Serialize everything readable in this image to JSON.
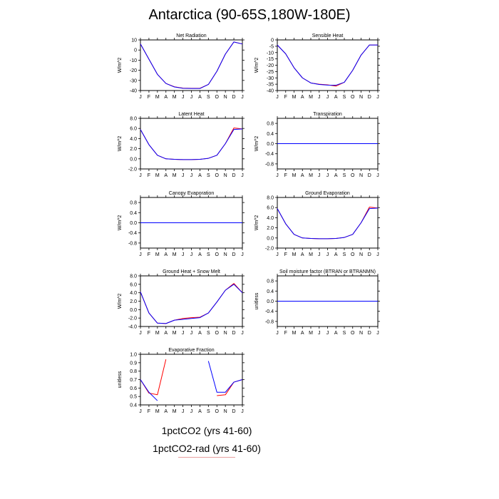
{
  "title": "Antarctica (90-65S,180W-180E)",
  "colors": {
    "run1": "#0000ff",
    "run2": "#ff0000",
    "axis": "#000000"
  },
  "legend": [
    {
      "label": "1pctCO2 (yrs 41-60)",
      "color": "#0000ff"
    },
    {
      "label": "1pctCO2-rad (yrs 41-60)",
      "color": "#ff0000"
    }
  ],
  "chart_data": [
    {
      "type": "line",
      "title": "Net Radiation",
      "ylabel": "W/m^2",
      "categories": [
        "J",
        "F",
        "M",
        "A",
        "M",
        "J",
        "J",
        "A",
        "S",
        "O",
        "N",
        "D",
        "J"
      ],
      "ylim": [
        -40,
        10
      ],
      "yticks": [
        10,
        0,
        -10,
        -20,
        -30,
        -40
      ],
      "yticklabels": [
        "10",
        "0",
        "-10",
        "-20",
        "-30",
        "-40"
      ],
      "series": [
        {
          "values": [
            6,
            -9,
            -24,
            -33,
            -36.5,
            -37.8,
            -38,
            -38,
            -34,
            -21,
            -4,
            8,
            6
          ]
        },
        {
          "values": [
            6,
            -9,
            -24,
            -33,
            -36.3,
            -37.6,
            -37.8,
            -37.8,
            -34,
            -21,
            -4,
            8,
            6
          ]
        }
      ]
    },
    {
      "type": "line",
      "title": "Sensible Heat",
      "ylabel": "W/m^2",
      "categories": [
        "J",
        "F",
        "M",
        "A",
        "M",
        "J",
        "J",
        "A",
        "S",
        "O",
        "N",
        "D",
        "J"
      ],
      "ylim": [
        -40,
        0
      ],
      "yticks": [
        0,
        -5,
        -10,
        -15,
        -20,
        -25,
        -30,
        -35,
        -40
      ],
      "yticklabels": [
        "0",
        "-5",
        "-10",
        "-15",
        "-20",
        "-25",
        "-30",
        "-35",
        "-40"
      ],
      "series": [
        {
          "values": [
            -4,
            -11,
            -22,
            -30,
            -34,
            -35.2,
            -35.7,
            -35.8,
            -33.5,
            -24,
            -12,
            -4,
            -4
          ]
        },
        {
          "values": [
            -4,
            -11,
            -22,
            -30,
            -34,
            -35,
            -35.5,
            -36.5,
            -33.5,
            -24,
            -12,
            -4,
            -4
          ]
        }
      ]
    },
    {
      "type": "line",
      "title": "Latent Heat",
      "ylabel": "W/m^2",
      "categories": [
        "J",
        "F",
        "M",
        "A",
        "M",
        "J",
        "J",
        "A",
        "S",
        "O",
        "N",
        "D",
        "J"
      ],
      "ylim": [
        -2,
        8
      ],
      "yticks": [
        8,
        6,
        4,
        2,
        0,
        -2
      ],
      "yticklabels": [
        "8.0",
        "6.0",
        "4.0",
        "2.0",
        "0.0",
        "-2.0"
      ],
      "series": [
        {
          "values": [
            5.8,
            2.8,
            0.7,
            0.0,
            -0.1,
            -0.15,
            -0.15,
            -0.1,
            0.1,
            0.7,
            3.0,
            5.8,
            5.9
          ]
        },
        {
          "values": [
            5.8,
            2.8,
            0.7,
            0.0,
            -0.1,
            -0.15,
            -0.15,
            -0.1,
            0.1,
            0.7,
            3.0,
            6.1,
            5.9
          ]
        }
      ]
    },
    {
      "type": "line",
      "title": "Transpiration",
      "ylabel": "W/m^2",
      "categories": [
        "J",
        "F",
        "M",
        "A",
        "M",
        "J",
        "J",
        "A",
        "S",
        "O",
        "N",
        "D",
        "J"
      ],
      "ylim": [
        -1,
        1
      ],
      "yticks": [
        0.8,
        0.4,
        0,
        -0.4,
        -0.8
      ],
      "yticklabels": [
        "0.8",
        "0.4",
        "0.0",
        "-0.4",
        "-0.8"
      ],
      "series": [
        {
          "values": [
            0,
            0,
            0,
            0,
            0,
            0,
            0,
            0,
            0,
            0,
            0,
            0,
            0
          ]
        },
        {
          "values": [
            0,
            0,
            0,
            0,
            0,
            0,
            0,
            0,
            0,
            0,
            0,
            0,
            0
          ]
        }
      ]
    },
    {
      "type": "line",
      "title": "Canopy Evaporation",
      "ylabel": "W/m^2",
      "categories": [
        "J",
        "F",
        "M",
        "A",
        "M",
        "J",
        "J",
        "A",
        "S",
        "O",
        "N",
        "D",
        "J"
      ],
      "ylim": [
        -1,
        1
      ],
      "yticks": [
        0.8,
        0.4,
        0,
        -0.4,
        -0.8
      ],
      "yticklabels": [
        "0.8",
        "0.4",
        "0.0",
        "-0.4",
        "-0.8"
      ],
      "series": [
        {
          "values": [
            0,
            0,
            0,
            0,
            0,
            0,
            0,
            0,
            0,
            0,
            0,
            0,
            0
          ]
        },
        {
          "values": [
            0,
            0,
            0,
            0,
            0,
            0,
            0,
            0,
            0,
            0,
            0,
            0,
            0
          ]
        }
      ]
    },
    {
      "type": "line",
      "title": "Ground Evaporation",
      "ylabel": "W/m^2",
      "categories": [
        "J",
        "F",
        "M",
        "A",
        "M",
        "J",
        "J",
        "A",
        "S",
        "O",
        "N",
        "D",
        "J"
      ],
      "ylim": [
        -2,
        8
      ],
      "yticks": [
        8,
        6,
        4,
        2,
        0,
        -2
      ],
      "yticklabels": [
        "8.0",
        "6.0",
        "4.0",
        "2.0",
        "0.0",
        "-2.0"
      ],
      "series": [
        {
          "values": [
            5.8,
            2.8,
            0.7,
            0.0,
            -0.1,
            -0.15,
            -0.15,
            -0.1,
            0.1,
            0.7,
            3.0,
            5.8,
            5.9
          ]
        },
        {
          "values": [
            5.8,
            2.8,
            0.7,
            0.0,
            -0.1,
            -0.15,
            -0.15,
            -0.1,
            0.1,
            0.7,
            3.0,
            6.1,
            5.9
          ]
        }
      ]
    },
    {
      "type": "line",
      "title": "Ground Heat + Snow Melt",
      "ylabel": "W/m^2",
      "categories": [
        "J",
        "F",
        "M",
        "A",
        "M",
        "J",
        "J",
        "A",
        "S",
        "O",
        "N",
        "D",
        "J"
      ],
      "ylim": [
        -4,
        8
      ],
      "yticks": [
        8,
        6,
        4,
        2,
        0,
        -2,
        -4
      ],
      "yticklabels": [
        "8.0",
        "6.0",
        "4.0",
        "2.0",
        "0.0",
        "-2.0",
        "-4.0"
      ],
      "series": [
        {
          "values": [
            4.2,
            -0.8,
            -3.2,
            -3.3,
            -2.5,
            -2.3,
            -2.1,
            -1.9,
            -0.8,
            1.8,
            4.6,
            6.0,
            4.0
          ]
        },
        {
          "values": [
            4.2,
            -0.8,
            -3.2,
            -3.3,
            -2.5,
            -2.1,
            -1.9,
            -1.8,
            -0.8,
            1.8,
            4.6,
            6.2,
            4.0
          ]
        }
      ]
    },
    {
      "type": "line",
      "title": "Soil moisture factor (BTRAN or BTRANMN)",
      "ylabel": "unitless",
      "categories": [
        "J",
        "F",
        "M",
        "A",
        "M",
        "J",
        "J",
        "A",
        "S",
        "O",
        "N",
        "D",
        "J"
      ],
      "ylim": [
        -1,
        1
      ],
      "yticks": [
        0.8,
        0.4,
        0,
        -0.4,
        -0.8
      ],
      "yticklabels": [
        "0.8",
        "0.4",
        "0.0",
        "-0.4",
        "-0.8"
      ],
      "series": [
        {
          "values": [
            0,
            0,
            0,
            0,
            0,
            0,
            0,
            0,
            0,
            0,
            0,
            0,
            0
          ]
        },
        {
          "values": [
            0,
            0,
            0,
            0,
            0,
            0,
            0,
            0,
            0,
            0,
            0,
            0,
            0
          ]
        }
      ]
    },
    {
      "type": "line",
      "title": "Evaporative Fraction",
      "ylabel": "unitless",
      "categories": [
        "J",
        "F",
        "M",
        "A",
        "M",
        "J",
        "J",
        "A",
        "S",
        "O",
        "N",
        "D",
        "J"
      ],
      "ylim": [
        0.4,
        1.0
      ],
      "yticks": [
        1.0,
        0.9,
        0.8,
        0.7,
        0.6,
        0.5,
        0.4
      ],
      "yticklabels": [
        "1.0",
        "0.9",
        "0.8",
        "0.7",
        "0.6",
        "0.5",
        "0.4"
      ],
      "series": [
        {
          "values": [
            0.7,
            0.55,
            0.45,
            null,
            null,
            null,
            null,
            null,
            0.92,
            0.55,
            0.55,
            0.67,
            0.7
          ]
        },
        {
          "values": [
            0.7,
            0.54,
            0.52,
            0.94,
            null,
            null,
            null,
            null,
            null,
            0.51,
            0.52,
            0.67,
            0.7
          ]
        }
      ]
    }
  ]
}
